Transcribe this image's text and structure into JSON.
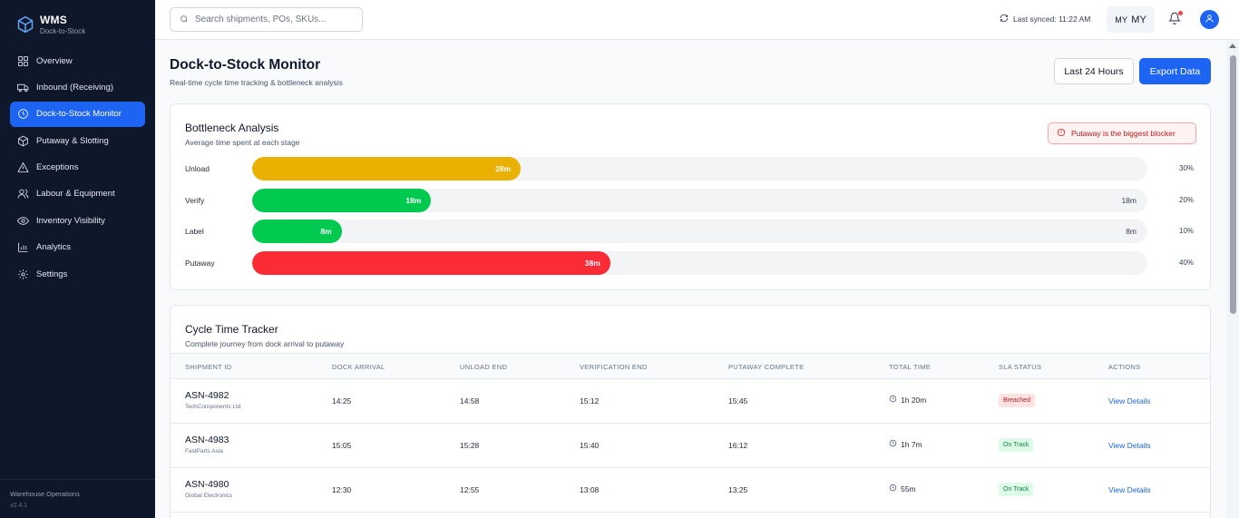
{
  "brand": {
    "title": "WMS",
    "subtitle": "Dock-to-Stock"
  },
  "sidebar": {
    "items": [
      {
        "label": "Overview",
        "icon": "grid-icon"
      },
      {
        "label": "Inbound (Receiving)",
        "icon": "truck-icon"
      },
      {
        "label": "Dock-to-Stock Monitor",
        "icon": "clock-icon",
        "active": true
      },
      {
        "label": "Putaway & Slotting",
        "icon": "box-icon"
      },
      {
        "label": "Exceptions",
        "icon": "alert-triangle-icon"
      },
      {
        "label": "Labour & Equipment",
        "icon": "users-icon"
      },
      {
        "label": "Inventory Visibility",
        "icon": "eye-icon"
      },
      {
        "label": "Analytics",
        "icon": "bar-chart-icon"
      },
      {
        "label": "Settings",
        "icon": "gear-icon"
      }
    ],
    "footer": {
      "title": "Warehouse Operations",
      "version": "v2.4.1"
    }
  },
  "topbar": {
    "search_placeholder": "Search shipments, POs, SKUs...",
    "last_synced": "Last synced: 11:22 AM",
    "lang_code": "MY",
    "lang_label": "MY"
  },
  "page": {
    "title": "Dock-to-Stock Monitor",
    "subtitle": "Real-time cycle time tracking & bottleneck analysis",
    "range_button": "Last 24 Hours",
    "export_button": "Export Data"
  },
  "bottleneck": {
    "title": "Bottleneck Analysis",
    "subtitle": "Average time spent at each stage",
    "alert": "Putaway is the biggest blocker",
    "stages": [
      {
        "label": "Unload",
        "value_label": "28m",
        "end_label": "",
        "pct_label": "30%",
        "fraction": 0.3,
        "color": "#eab002"
      },
      {
        "label": "Verify",
        "value_label": "18m",
        "end_label": "18m",
        "pct_label": "20%",
        "fraction": 0.2,
        "color": "#00c950"
      },
      {
        "label": "Label",
        "value_label": "8m",
        "end_label": "8m",
        "pct_label": "10%",
        "fraction": 0.1,
        "color": "#00c950"
      },
      {
        "label": "Putaway",
        "value_label": "38m",
        "end_label": "",
        "pct_label": "40%",
        "fraction": 0.4,
        "color": "#fb2c36"
      }
    ]
  },
  "tracker": {
    "title": "Cycle Time Tracker",
    "subtitle": "Complete journey from dock arrival to putaway",
    "columns": [
      "SHIPMENT ID",
      "DOCK ARRIVAL",
      "UNLOAD END",
      "VERIFICATION END",
      "PUTAWAY COMPLETE",
      "TOTAL TIME",
      "SLA STATUS",
      "ACTIONS"
    ],
    "rows": [
      {
        "id": "ASN-4982",
        "supplier": "TechComponents Ltd",
        "dock": "14:25",
        "unload": "14:58",
        "verify": "15:12",
        "putaway": "15:45",
        "total": "1h 20m",
        "status": "Breached",
        "status_type": "breached",
        "action": "View Details"
      },
      {
        "id": "ASN-4983",
        "supplier": "FastParts Asia",
        "dock": "15:05",
        "unload": "15:28",
        "verify": "15:40",
        "putaway": "16:12",
        "total": "1h 7m",
        "status": "On Track",
        "status_type": "ontrack",
        "action": "View Details"
      },
      {
        "id": "ASN-4980",
        "supplier": "Global Electronics",
        "dock": "12:30",
        "unload": "12:55",
        "verify": "13:08",
        "putaway": "13:25",
        "total": "55m",
        "status": "On Track",
        "status_type": "ontrack",
        "action": "View Details"
      }
    ]
  }
}
